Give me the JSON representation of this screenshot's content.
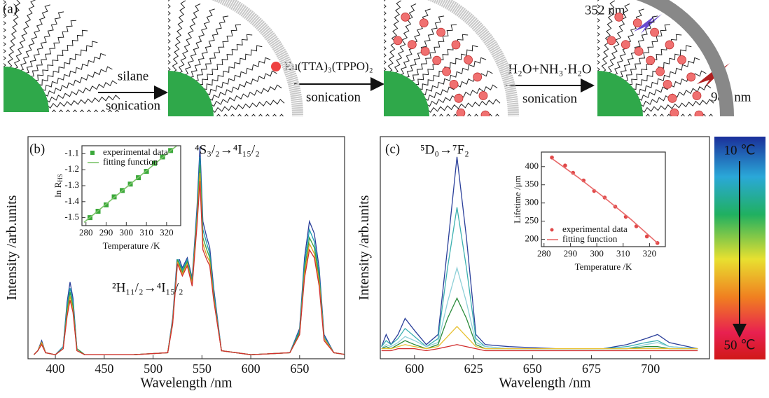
{
  "panel_a": {
    "label": "(a)",
    "step1_top": "silane",
    "step1_bottom": "sonication",
    "reagent": "Eu(TTA)₃(TPPO)₂",
    "step2": "sonication",
    "step3_top": "H₂O+NH₃·H₂O",
    "step3_bottom": "sonication",
    "uv": "352 nm",
    "nir": "980 nm"
  },
  "colorbar": {
    "top": "10 ℃",
    "bottom": "50 ℃"
  },
  "chart_data": [
    {
      "type": "line",
      "label": "(b)",
      "x_label": "Wavelength /nm",
      "y_label": "Intensity /arb.units",
      "annotations": [
        "⁴S₃/₂→⁴I₁₅/₂",
        "²H₁₁/₂→⁴I₁₅/₂"
      ],
      "xlim": [
        372,
        696
      ],
      "ylim": [
        0,
        110
      ],
      "xticks": [
        400,
        450,
        500,
        550,
        600,
        650
      ],
      "x": [
        378,
        382,
        386,
        390,
        400,
        408,
        412,
        415,
        418,
        422,
        430,
        480,
        515,
        520,
        525,
        530,
        535,
        540,
        545,
        548,
        551,
        555,
        558,
        562,
        570,
        600,
        640,
        650,
        655,
        660,
        665,
        670,
        675,
        685,
        698
      ],
      "series": [
        {
          "color": "#2a3f9a",
          "values": [
            2,
            4,
            9,
            3,
            2,
            6,
            28,
            38,
            30,
            5,
            2,
            2,
            3,
            20,
            52,
            45,
            50,
            40,
            75,
            105,
            68,
            60,
            55,
            35,
            4,
            2,
            3,
            15,
            50,
            68,
            62,
            45,
            12,
            3,
            2
          ]
        },
        {
          "color": "#1aa0b0",
          "values": [
            2,
            4,
            8,
            3,
            2,
            6,
            26,
            35,
            28,
            5,
            2,
            2,
            3,
            19,
            50,
            44,
            49,
            39,
            72,
            100,
            64,
            57,
            52,
            33,
            4,
            2,
            3,
            14,
            47,
            64,
            58,
            42,
            11,
            3,
            2
          ]
        },
        {
          "color": "#3aa040",
          "values": [
            2,
            4,
            8,
            3,
            2,
            5,
            24,
            33,
            26,
            5,
            2,
            2,
            3,
            18,
            49,
            43,
            48,
            38,
            70,
            96,
            60,
            54,
            50,
            31,
            4,
            2,
            3,
            13,
            44,
            60,
            55,
            40,
            10,
            3,
            2
          ]
        },
        {
          "color": "#e0a020",
          "values": [
            2,
            4,
            8,
            3,
            2,
            5,
            22,
            31,
            24,
            4,
            2,
            2,
            3,
            18,
            48,
            42,
            47,
            37,
            68,
            92,
            57,
            51,
            48,
            30,
            4,
            2,
            3,
            12,
            42,
            57,
            52,
            38,
            10,
            3,
            2
          ]
        },
        {
          "color": "#d03030",
          "values": [
            2,
            4,
            7,
            3,
            2,
            5,
            21,
            29,
            23,
            4,
            2,
            2,
            3,
            17,
            47,
            41,
            46,
            36,
            66,
            88,
            54,
            49,
            46,
            29,
            4,
            2,
            3,
            12,
            40,
            54,
            50,
            36,
            9,
            3,
            2
          ]
        }
      ]
    },
    {
      "type": "scatter",
      "x_label": "Temperature /K",
      "y_label": "ln R",
      "y_label_sub": "HS",
      "legend": "upper left",
      "xlim": [
        278,
        327
      ],
      "ylim": [
        -1.55,
        -1.05
      ],
      "xticks": [
        280,
        290,
        300,
        310,
        320
      ],
      "yticks": [
        -1.1,
        -1.2,
        -1.3,
        -1.4,
        -1.5
      ],
      "series": [
        {
          "name": "experimental data",
          "style": "markers",
          "color": "#3aa83a",
          "x": [
            282,
            286,
            290,
            294,
            298,
            302,
            306,
            310,
            314,
            318,
            322
          ],
          "values": [
            -1.5,
            -1.46,
            -1.42,
            -1.37,
            -1.33,
            -1.29,
            -1.25,
            -1.21,
            -1.16,
            -1.12,
            -1.08
          ]
        },
        {
          "name": "fitting function",
          "style": "line",
          "color": "#7cc46a",
          "x": [
            279,
            326
          ],
          "values": [
            -1.53,
            -1.04
          ]
        }
      ]
    },
    {
      "type": "line",
      "label": "(c)",
      "x_label": "Wavelength /nm",
      "y_label": "Intensity /arb.units",
      "annotations": [
        "⁵D₀→⁷F₂"
      ],
      "xlim": [
        585.5,
        725
      ],
      "ylim": [
        0,
        110
      ],
      "xticks": [
        600,
        625,
        650,
        675,
        700
      ],
      "x": [
        586,
        588,
        590,
        593,
        596,
        600,
        605,
        610,
        614,
        618,
        622,
        626,
        630,
        640,
        660,
        680,
        690,
        698,
        703,
        708,
        720
      ],
      "series": [
        {
          "color": "#2a3f9a",
          "values": [
            6,
            12,
            7,
            12,
            20,
            14,
            7,
            12,
            55,
            100,
            60,
            12,
            7,
            6,
            5,
            5,
            7,
            10,
            12,
            8,
            5
          ]
        },
        {
          "color": "#3cb0b0",
          "values": [
            6,
            9,
            7,
            10,
            15,
            11,
            6,
            10,
            45,
            75,
            45,
            10,
            6,
            5,
            5,
            5,
            6,
            8,
            9,
            6,
            5
          ]
        },
        {
          "color": "#8fd0d8",
          "values": [
            5,
            7,
            6,
            8,
            11,
            9,
            6,
            8,
            28,
            45,
            28,
            8,
            6,
            5,
            5,
            5,
            5,
            7,
            8,
            6,
            5
          ]
        },
        {
          "color": "#2a8a3a",
          "values": [
            5,
            6,
            5,
            7,
            9,
            7,
            5,
            7,
            20,
            30,
            20,
            7,
            5,
            5,
            5,
            5,
            5,
            6,
            6,
            5,
            5
          ]
        },
        {
          "color": "#e8c030",
          "values": [
            5,
            5,
            5,
            6,
            7,
            6,
            5,
            6,
            11,
            16,
            11,
            6,
            5,
            5,
            5,
            5,
            5,
            5,
            5,
            5,
            5
          ]
        },
        {
          "color": "#d02a2a",
          "values": [
            4,
            4,
            4,
            5,
            5,
            5,
            4,
            5,
            6,
            7,
            6,
            5,
            4,
            4,
            4,
            4,
            4,
            4,
            4,
            4,
            4
          ]
        }
      ]
    },
    {
      "type": "scatter",
      "x_label": "Temperature /K",
      "y_label": "Lifetime /μm",
      "legend": "lower left",
      "xlim": [
        279,
        326
      ],
      "ylim": [
        180,
        440
      ],
      "xticks": [
        280,
        290,
        300,
        310,
        320
      ],
      "yticks": [
        200,
        250,
        300,
        350,
        400
      ],
      "series": [
        {
          "name": "experimental data",
          "style": "markers",
          "color": "#e04848",
          "x": [
            283,
            288,
            291,
            295,
            299,
            303,
            307,
            311,
            315,
            319,
            323
          ],
          "values": [
            425,
            403,
            383,
            362,
            333,
            315,
            290,
            262,
            236,
            208,
            190
          ]
        },
        {
          "name": "fitting function",
          "style": "line",
          "color": "#e86a6a",
          "x": [
            283,
            293,
            303,
            313,
            323
          ],
          "values": [
            422,
            370,
            314,
            255,
            190
          ]
        }
      ]
    }
  ]
}
